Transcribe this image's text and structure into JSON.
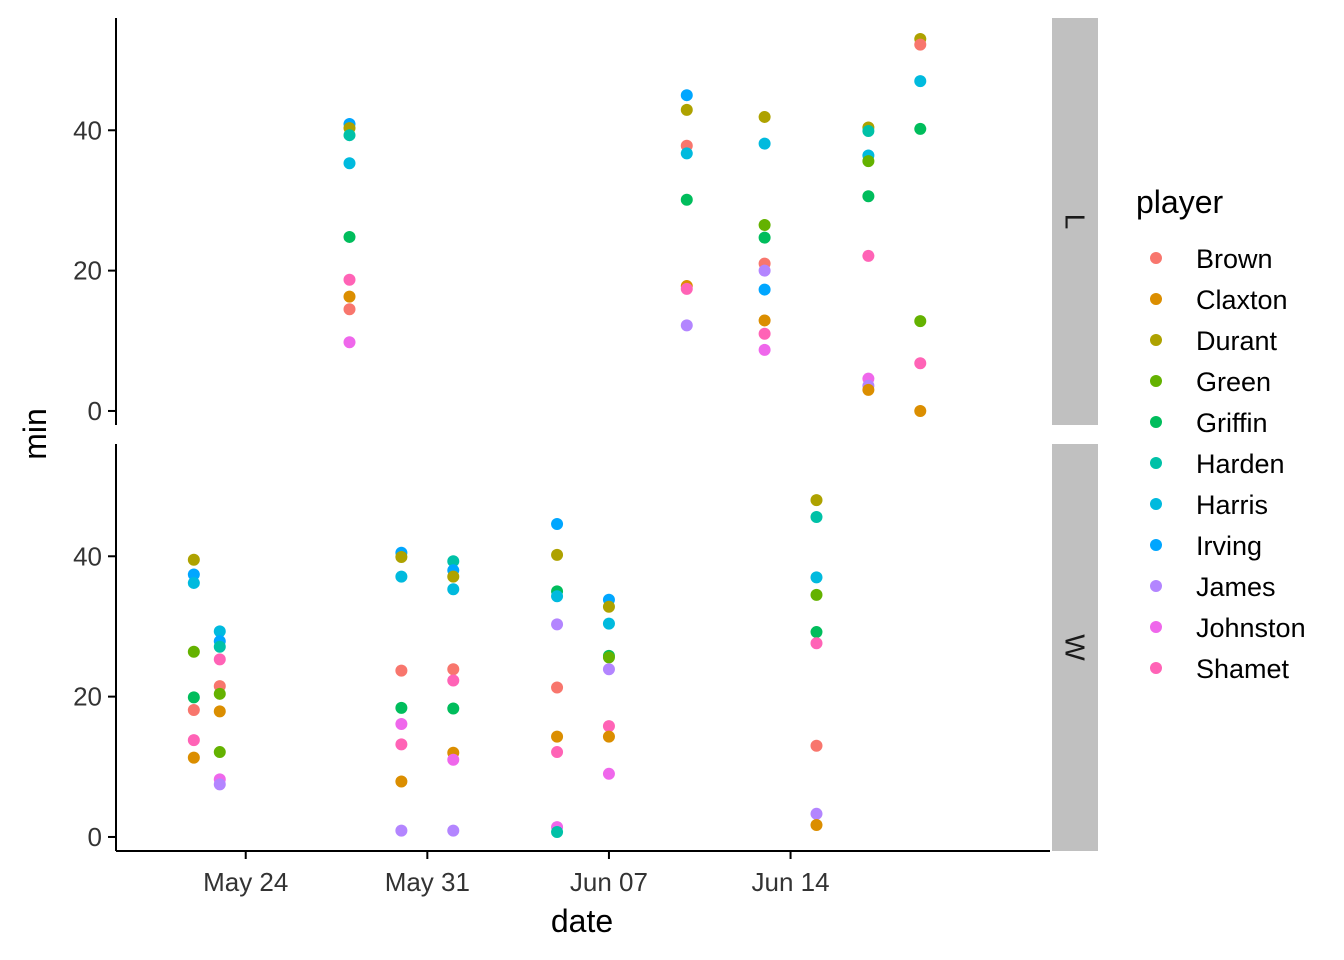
{
  "chart_data": {
    "type": "scatter",
    "xlabel": "date",
    "ylabel": "min",
    "x_ticks": [
      {
        "date": "2019-05-24",
        "label": "May 24"
      },
      {
        "date": "2019-05-31",
        "label": "May 31"
      },
      {
        "date": "2019-06-07",
        "label": "Jun 07"
      },
      {
        "date": "2019-06-14",
        "label": "Jun 14"
      }
    ],
    "xlim": [
      "2019-05-19",
      "2019-06-24"
    ],
    "ylim": [
      -2,
      56
    ],
    "y_ticks": [
      0,
      20,
      40
    ],
    "legend": {
      "title": "player",
      "placement": "right"
    },
    "series": [
      {
        "name": "Brown",
        "color": "#F8766D"
      },
      {
        "name": "Claxton",
        "color": "#DB8E00"
      },
      {
        "name": "Durant",
        "color": "#AEA200"
      },
      {
        "name": "Green",
        "color": "#64B200"
      },
      {
        "name": "Griffin",
        "color": "#00BD5C"
      },
      {
        "name": "Harden",
        "color": "#00C1A7"
      },
      {
        "name": "Harris",
        "color": "#00BADE"
      },
      {
        "name": "Irving",
        "color": "#00A6FF"
      },
      {
        "name": "James",
        "color": "#B385FF"
      },
      {
        "name": "Johnston",
        "color": "#EF67EB"
      },
      {
        "name": "Shamet",
        "color": "#FF63B6"
      }
    ],
    "panels": [
      {
        "label": "L",
        "points": [
          {
            "player": "Irving",
            "date": "2019-05-28",
            "min": 40.9
          },
          {
            "player": "Durant",
            "date": "2019-05-28",
            "min": 40.3
          },
          {
            "player": "Harden",
            "date": "2019-05-28",
            "min": 39.3
          },
          {
            "player": "Harris",
            "date": "2019-05-28",
            "min": 35.3
          },
          {
            "player": "Griffin",
            "date": "2019-05-28",
            "min": 24.8
          },
          {
            "player": "Shamet",
            "date": "2019-05-28",
            "min": 18.7
          },
          {
            "player": "Claxton",
            "date": "2019-05-28",
            "min": 16.3
          },
          {
            "player": "Brown",
            "date": "2019-05-28",
            "min": 14.5
          },
          {
            "player": "Johnston",
            "date": "2019-05-28",
            "min": 9.8
          },
          {
            "player": "Irving",
            "date": "2019-06-10",
            "min": 45.0
          },
          {
            "player": "Durant",
            "date": "2019-06-10",
            "min": 42.9
          },
          {
            "player": "Brown",
            "date": "2019-06-10",
            "min": 37.8
          },
          {
            "player": "Harris",
            "date": "2019-06-10",
            "min": 36.7
          },
          {
            "player": "Griffin",
            "date": "2019-06-10",
            "min": 30.1
          },
          {
            "player": "Claxton",
            "date": "2019-06-10",
            "min": 17.8
          },
          {
            "player": "Shamet",
            "date": "2019-06-10",
            "min": 17.4
          },
          {
            "player": "James",
            "date": "2019-06-10",
            "min": 12.2
          },
          {
            "player": "Durant",
            "date": "2019-06-13",
            "min": 41.9
          },
          {
            "player": "Harris",
            "date": "2019-06-13",
            "min": 38.1
          },
          {
            "player": "Green",
            "date": "2019-06-13",
            "min": 26.5
          },
          {
            "player": "Griffin",
            "date": "2019-06-13",
            "min": 24.7
          },
          {
            "player": "Brown",
            "date": "2019-06-13",
            "min": 21.0
          },
          {
            "player": "James",
            "date": "2019-06-13",
            "min": 20.0
          },
          {
            "player": "Irving",
            "date": "2019-06-13",
            "min": 17.3
          },
          {
            "player": "Claxton",
            "date": "2019-06-13",
            "min": 12.9
          },
          {
            "player": "Shamet",
            "date": "2019-06-13",
            "min": 11.0
          },
          {
            "player": "Johnston",
            "date": "2019-06-13",
            "min": 8.7
          },
          {
            "player": "Durant",
            "date": "2019-06-17",
            "min": 40.4
          },
          {
            "player": "Harden",
            "date": "2019-06-17",
            "min": 39.9
          },
          {
            "player": "Harris",
            "date": "2019-06-17",
            "min": 36.4
          },
          {
            "player": "Green",
            "date": "2019-06-17",
            "min": 35.6
          },
          {
            "player": "Griffin",
            "date": "2019-06-17",
            "min": 30.6
          },
          {
            "player": "Shamet",
            "date": "2019-06-17",
            "min": 22.1
          },
          {
            "player": "Johnston",
            "date": "2019-06-17",
            "min": 4.6
          },
          {
            "player": "James",
            "date": "2019-06-17",
            "min": 3.6
          },
          {
            "player": "Claxton",
            "date": "2019-06-17",
            "min": 3.0
          },
          {
            "player": "Durant",
            "date": "2019-06-19",
            "min": 53.0
          },
          {
            "player": "Brown",
            "date": "2019-06-19",
            "min": 52.2
          },
          {
            "player": "Harris",
            "date": "2019-06-19",
            "min": 47.0
          },
          {
            "player": "Griffin",
            "date": "2019-06-19",
            "min": 40.2
          },
          {
            "player": "Green",
            "date": "2019-06-19",
            "min": 12.8
          },
          {
            "player": "Shamet",
            "date": "2019-06-19",
            "min": 6.8
          },
          {
            "player": "Claxton",
            "date": "2019-06-19",
            "min": 0.0
          }
        ]
      },
      {
        "label": "W",
        "points": [
          {
            "player": "Durant",
            "date": "2019-05-22",
            "min": 39.5
          },
          {
            "player": "Irving",
            "date": "2019-05-22",
            "min": 37.4
          },
          {
            "player": "Harris",
            "date": "2019-05-22",
            "min": 36.2
          },
          {
            "player": "Green",
            "date": "2019-05-22",
            "min": 26.4
          },
          {
            "player": "Griffin",
            "date": "2019-05-22",
            "min": 19.9
          },
          {
            "player": "Brown",
            "date": "2019-05-22",
            "min": 18.1
          },
          {
            "player": "Shamet",
            "date": "2019-05-22",
            "min": 13.8
          },
          {
            "player": "Claxton",
            "date": "2019-05-22",
            "min": 11.3
          },
          {
            "player": "Harris",
            "date": "2019-05-23",
            "min": 29.3
          },
          {
            "player": "Irving",
            "date": "2019-05-23",
            "min": 27.9
          },
          {
            "player": "Harden",
            "date": "2019-05-23",
            "min": 27.1
          },
          {
            "player": "Shamet",
            "date": "2019-05-23",
            "min": 25.3
          },
          {
            "player": "Brown",
            "date": "2019-05-23",
            "min": 21.5
          },
          {
            "player": "Green",
            "date": "2019-05-23",
            "min": 20.4
          },
          {
            "player": "Claxton",
            "date": "2019-05-23",
            "min": 17.9
          },
          {
            "player": "Green",
            "date": "2019-05-23",
            "min": 12.1
          },
          {
            "player": "Johnston",
            "date": "2019-05-23",
            "min": 8.2
          },
          {
            "player": "James",
            "date": "2019-05-23",
            "min": 7.5
          },
          {
            "player": "Irving",
            "date": "2019-05-30",
            "min": 40.5
          },
          {
            "player": "Durant",
            "date": "2019-05-30",
            "min": 39.9
          },
          {
            "player": "Harris",
            "date": "2019-05-30",
            "min": 37.1
          },
          {
            "player": "Brown",
            "date": "2019-05-30",
            "min": 23.7
          },
          {
            "player": "Griffin",
            "date": "2019-05-30",
            "min": 18.4
          },
          {
            "player": "Johnston",
            "date": "2019-05-30",
            "min": 16.1
          },
          {
            "player": "Shamet",
            "date": "2019-05-30",
            "min": 13.2
          },
          {
            "player": "Claxton",
            "date": "2019-05-30",
            "min": 7.9
          },
          {
            "player": "James",
            "date": "2019-05-30",
            "min": 0.9
          },
          {
            "player": "Harden",
            "date": "2019-06-01",
            "min": 39.3
          },
          {
            "player": "Irving",
            "date": "2019-06-01",
            "min": 38.0
          },
          {
            "player": "Durant",
            "date": "2019-06-01",
            "min": 37.1
          },
          {
            "player": "Harris",
            "date": "2019-06-01",
            "min": 35.3
          },
          {
            "player": "Brown",
            "date": "2019-06-01",
            "min": 23.9
          },
          {
            "player": "Shamet",
            "date": "2019-06-01",
            "min": 22.3
          },
          {
            "player": "Griffin",
            "date": "2019-06-01",
            "min": 18.3
          },
          {
            "player": "Claxton",
            "date": "2019-06-01",
            "min": 12.0
          },
          {
            "player": "Johnston",
            "date": "2019-06-01",
            "min": 11.0
          },
          {
            "player": "James",
            "date": "2019-06-01",
            "min": 0.9
          },
          {
            "player": "Irving",
            "date": "2019-06-05",
            "min": 44.6
          },
          {
            "player": "Durant",
            "date": "2019-06-05",
            "min": 40.2
          },
          {
            "player": "Griffin",
            "date": "2019-06-05",
            "min": 35.0
          },
          {
            "player": "Harris",
            "date": "2019-06-05",
            "min": 34.3
          },
          {
            "player": "James",
            "date": "2019-06-05",
            "min": 30.3
          },
          {
            "player": "Brown",
            "date": "2019-06-05",
            "min": 21.3
          },
          {
            "player": "Claxton",
            "date": "2019-06-05",
            "min": 14.3
          },
          {
            "player": "Shamet",
            "date": "2019-06-05",
            "min": 12.1
          },
          {
            "player": "Johnston",
            "date": "2019-06-05",
            "min": 1.4
          },
          {
            "player": "Harden",
            "date": "2019-06-05",
            "min": 0.7
          },
          {
            "player": "Irving",
            "date": "2019-06-07",
            "min": 33.8
          },
          {
            "player": "Durant",
            "date": "2019-06-07",
            "min": 32.8
          },
          {
            "player": "Harris",
            "date": "2019-06-07",
            "min": 30.4
          },
          {
            "player": "Griffin",
            "date": "2019-06-07",
            "min": 25.8
          },
          {
            "player": "Green",
            "date": "2019-06-07",
            "min": 25.6
          },
          {
            "player": "James",
            "date": "2019-06-07",
            "min": 23.9
          },
          {
            "player": "Shamet",
            "date": "2019-06-07",
            "min": 15.8
          },
          {
            "player": "Claxton",
            "date": "2019-06-07",
            "min": 14.3
          },
          {
            "player": "Johnston",
            "date": "2019-06-07",
            "min": 9.0
          },
          {
            "player": "Durant",
            "date": "2019-06-15",
            "min": 48.0
          },
          {
            "player": "Harden",
            "date": "2019-06-15",
            "min": 45.6
          },
          {
            "player": "Harris",
            "date": "2019-06-15",
            "min": 37.0
          },
          {
            "player": "Green",
            "date": "2019-06-15",
            "min": 34.5
          },
          {
            "player": "Griffin",
            "date": "2019-06-15",
            "min": 29.2
          },
          {
            "player": "Shamet",
            "date": "2019-06-15",
            "min": 27.6
          },
          {
            "player": "Brown",
            "date": "2019-06-15",
            "min": 13.0
          },
          {
            "player": "James",
            "date": "2019-06-15",
            "min": 3.3
          },
          {
            "player": "Claxton",
            "date": "2019-06-15",
            "min": 1.7
          }
        ]
      }
    ]
  }
}
